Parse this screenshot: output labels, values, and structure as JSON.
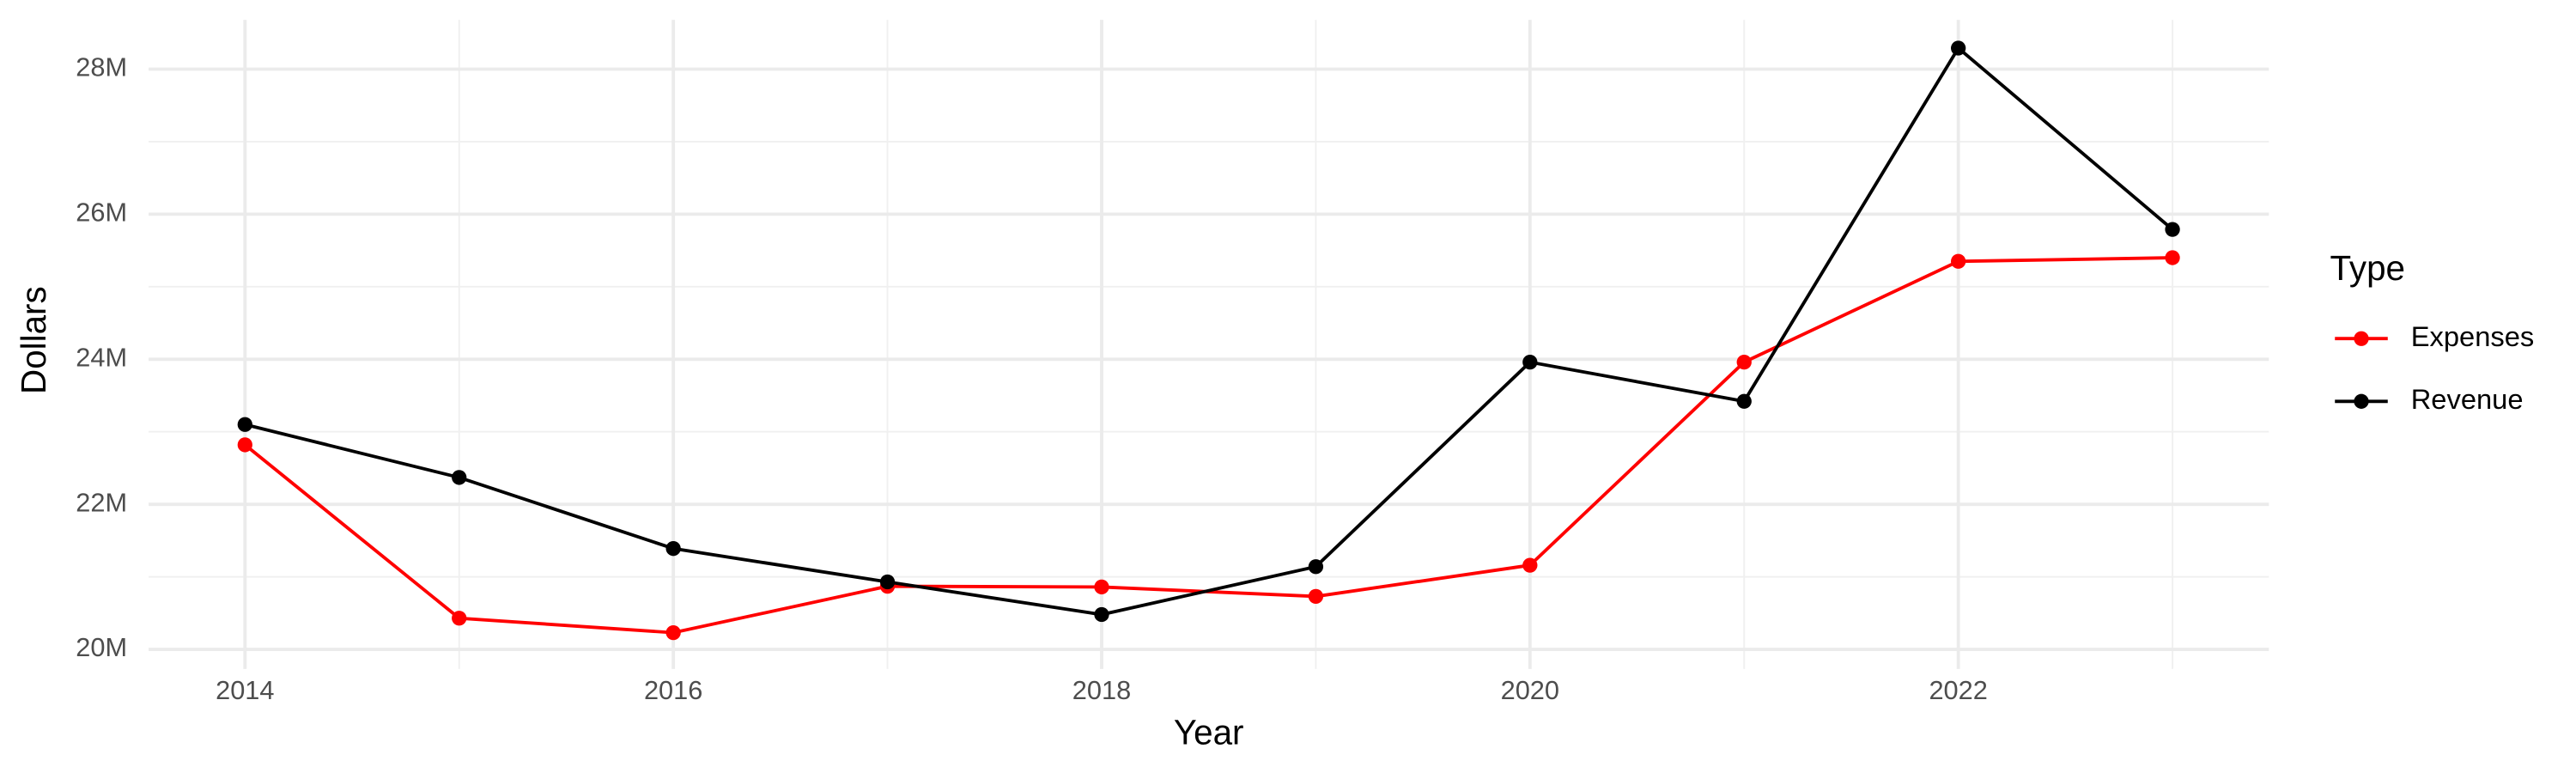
{
  "chart_data": {
    "type": "line",
    "x_label": "Year",
    "y_label": "Dollars",
    "legend_title": "Type",
    "legend_position": "right",
    "grid": true,
    "x": [
      2014,
      2015,
      2016,
      2017,
      2018,
      2019,
      2020,
      2021,
      2022,
      2023
    ],
    "series": [
      {
        "name": "Expenses",
        "color": "#ff0000",
        "values": [
          22820000,
          20430000,
          20230000,
          20870000,
          20860000,
          20730000,
          21160000,
          23960000,
          25350000,
          25400000
        ]
      },
      {
        "name": "Revenue",
        "color": "#000000",
        "values": [
          23100000,
          22370000,
          21390000,
          20930000,
          20480000,
          21140000,
          23960000,
          23420000,
          28290000,
          25790000
        ]
      }
    ],
    "xlim": [
      2013.55,
      2023.45
    ],
    "xticks": [
      2014,
      2016,
      2018,
      2020,
      2022
    ],
    "ylim": [
      19730000,
      28680000
    ],
    "yticks": [
      {
        "value": 20000000,
        "label": "20M"
      },
      {
        "value": 22000000,
        "label": "22M"
      },
      {
        "value": 24000000,
        "label": "24M"
      },
      {
        "value": 26000000,
        "label": "26M"
      },
      {
        "value": 28000000,
        "label": "28M"
      }
    ]
  }
}
